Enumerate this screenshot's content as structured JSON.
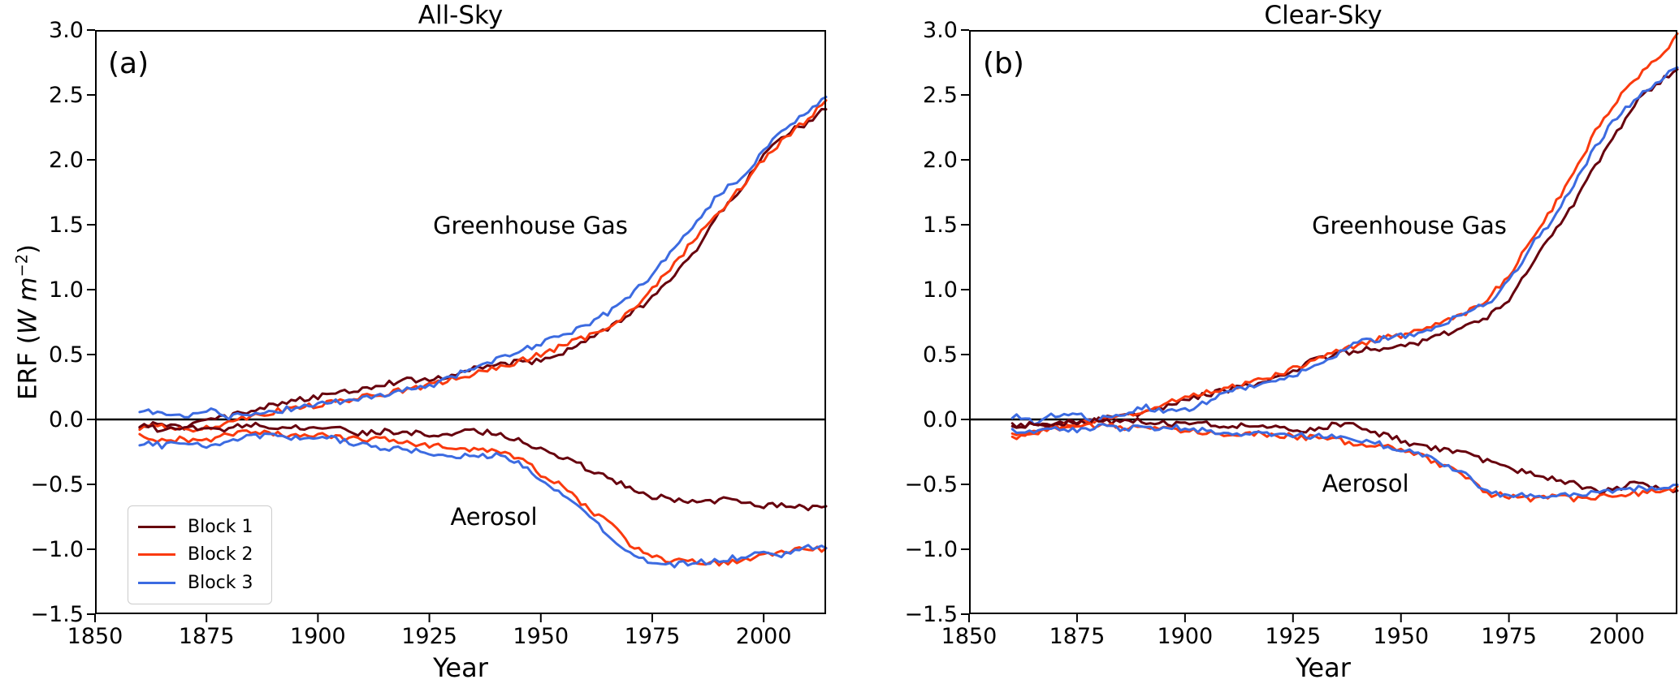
{
  "figure": {
    "ylabel": {
      "prefix": "ERF (",
      "math": "W m",
      "sup": "−2",
      "suffix": ")"
    },
    "panels": [
      {
        "label": "(a)",
        "title": "All-Sky",
        "xlabel": "Year",
        "annotations": {
          "ghg": "Greenhouse Gas",
          "aerosol": "Aerosol"
        }
      },
      {
        "label": "(b)",
        "title": "Clear-Sky",
        "xlabel": "Year",
        "annotations": {
          "ghg": "Greenhouse Gas",
          "aerosol": "Aerosol"
        }
      }
    ],
    "legend": {
      "items": [
        {
          "label": "Block 1",
          "color": "#67000d"
        },
        {
          "label": "Block 2",
          "color": "#fa3a0e"
        },
        {
          "label": "Block 3",
          "color": "#3c6be1"
        }
      ]
    }
  },
  "chart_data": [
    {
      "type": "line",
      "title": "All-Sky",
      "xlabel": "Year",
      "ylabel": "ERF (W m^-2)",
      "xlim": [
        1850,
        2014
      ],
      "ylim": [
        -1.5,
        3.0
      ],
      "grid": false,
      "legend_position": "lower left",
      "x_ticks": [
        1850,
        1875,
        1900,
        1925,
        1950,
        1975,
        2000
      ],
      "x_tick_labels": [
        "1850",
        "1875",
        "1900",
        "1925",
        "1950",
        "1975",
        "2000"
      ],
      "y_ticks": [
        -1.5,
        -1.0,
        -0.5,
        0.0,
        0.5,
        1.0,
        1.5,
        2.0,
        2.5,
        3.0
      ],
      "y_tick_labels": [
        "−1.5",
        "−1.0",
        "−0.5",
        "0.0",
        "0.5",
        "1.0",
        "1.5",
        "2.0",
        "2.5",
        "3.0"
      ],
      "zero_line": true,
      "annotations": [
        "Greenhouse Gas",
        "Aerosol"
      ],
      "x": [
        1860,
        1865,
        1870,
        1875,
        1880,
        1885,
        1890,
        1895,
        1900,
        1905,
        1910,
        1915,
        1920,
        1925,
        1930,
        1935,
        1940,
        1945,
        1950,
        1955,
        1960,
        1965,
        1970,
        1975,
        1980,
        1985,
        1990,
        1995,
        2000,
        2005,
        2010,
        2014
      ],
      "series": [
        {
          "name": "Block 1 Greenhouse Gas",
          "color": "#67000d",
          "values": [
            -0.05,
            -0.03,
            -0.06,
            -0.01,
            0.02,
            0.07,
            0.12,
            0.15,
            0.17,
            0.21,
            0.24,
            0.28,
            0.3,
            0.31,
            0.34,
            0.39,
            0.42,
            0.44,
            0.45,
            0.52,
            0.6,
            0.7,
            0.81,
            0.93,
            1.12,
            1.32,
            1.58,
            1.79,
            2.03,
            2.2,
            2.29,
            2.4
          ]
        },
        {
          "name": "Block 2 Greenhouse Gas",
          "color": "#fa3a0e",
          "values": [
            -0.07,
            -0.05,
            -0.09,
            -0.06,
            -0.02,
            0.03,
            0.06,
            0.09,
            0.11,
            0.14,
            0.17,
            0.2,
            0.23,
            0.26,
            0.31,
            0.35,
            0.39,
            0.45,
            0.5,
            0.57,
            0.63,
            0.72,
            0.83,
            1.0,
            1.2,
            1.41,
            1.6,
            1.79,
            2.01,
            2.17,
            2.32,
            2.46
          ]
        },
        {
          "name": "Block 3 Greenhouse Gas",
          "color": "#3c6be1",
          "values": [
            0.07,
            0.05,
            0.02,
            0.08,
            0.02,
            0.05,
            0.06,
            0.09,
            0.12,
            0.14,
            0.16,
            0.19,
            0.23,
            0.26,
            0.33,
            0.4,
            0.46,
            0.53,
            0.58,
            0.65,
            0.73,
            0.82,
            0.95,
            1.12,
            1.32,
            1.52,
            1.74,
            1.86,
            2.07,
            2.26,
            2.37,
            2.48
          ]
        },
        {
          "name": "Block 1 Aerosol",
          "color": "#67000d",
          "values": [
            -0.05,
            -0.08,
            -0.06,
            -0.08,
            -0.07,
            -0.04,
            -0.05,
            -0.06,
            -0.06,
            -0.08,
            -0.11,
            -0.09,
            -0.1,
            -0.12,
            -0.1,
            -0.09,
            -0.11,
            -0.15,
            -0.23,
            -0.29,
            -0.37,
            -0.45,
            -0.52,
            -0.59,
            -0.62,
            -0.64,
            -0.62,
            -0.62,
            -0.66,
            -0.66,
            -0.69,
            -0.65
          ]
        },
        {
          "name": "Block 2 Aerosol",
          "color": "#fa3a0e",
          "values": [
            -0.13,
            -0.16,
            -0.15,
            -0.17,
            -0.12,
            -0.1,
            -0.11,
            -0.13,
            -0.12,
            -0.14,
            -0.16,
            -0.15,
            -0.18,
            -0.2,
            -0.22,
            -0.24,
            -0.25,
            -0.29,
            -0.42,
            -0.52,
            -0.67,
            -0.79,
            -0.96,
            -1.06,
            -1.09,
            -1.1,
            -1.11,
            -1.08,
            -1.04,
            -1.02,
            -0.99,
            -1.0
          ]
        },
        {
          "name": "Block 3 Aerosol",
          "color": "#3c6be1",
          "values": [
            -0.18,
            -0.2,
            -0.17,
            -0.2,
            -0.16,
            -0.13,
            -0.12,
            -0.14,
            -0.13,
            -0.16,
            -0.2,
            -0.22,
            -0.24,
            -0.26,
            -0.29,
            -0.27,
            -0.28,
            -0.33,
            -0.45,
            -0.57,
            -0.73,
            -0.88,
            -1.04,
            -1.1,
            -1.12,
            -1.1,
            -1.08,
            -1.06,
            -1.03,
            -1.04,
            -0.98,
            -0.97
          ]
        }
      ]
    },
    {
      "type": "line",
      "title": "Clear-Sky",
      "xlabel": "Year",
      "ylabel": "ERF (W m^-2)",
      "xlim": [
        1850,
        2014
      ],
      "ylim": [
        -1.5,
        3.0
      ],
      "grid": false,
      "legend_position": "none",
      "x_ticks": [
        1850,
        1875,
        1900,
        1925,
        1950,
        1975,
        2000
      ],
      "x_tick_labels": [
        "1850",
        "1875",
        "1900",
        "1925",
        "1950",
        "1975",
        "2000"
      ],
      "y_ticks": [
        -1.5,
        -1.0,
        -0.5,
        0.0,
        0.5,
        1.0,
        1.5,
        2.0,
        2.5,
        3.0
      ],
      "y_tick_labels": [
        "−1.5",
        "−1.0",
        "−0.5",
        "0.0",
        "0.5",
        "1.0",
        "1.5",
        "2.0",
        "2.5",
        "3.0"
      ],
      "zero_line": true,
      "annotations": [
        "Greenhouse Gas",
        "Aerosol"
      ],
      "x": [
        1860,
        1865,
        1870,
        1875,
        1880,
        1885,
        1890,
        1895,
        1900,
        1905,
        1910,
        1915,
        1920,
        1925,
        1930,
        1935,
        1940,
        1945,
        1950,
        1955,
        1960,
        1965,
        1970,
        1975,
        1980,
        1985,
        1990,
        1995,
        2000,
        2005,
        2010,
        2014
      ],
      "series": [
        {
          "name": "Block 1 Greenhouse Gas",
          "color": "#67000d",
          "values": [
            -0.04,
            -0.05,
            -0.03,
            -0.02,
            0.0,
            0.04,
            0.05,
            0.1,
            0.15,
            0.19,
            0.23,
            0.26,
            0.31,
            0.36,
            0.46,
            0.5,
            0.53,
            0.55,
            0.57,
            0.6,
            0.66,
            0.72,
            0.79,
            0.93,
            1.19,
            1.42,
            1.65,
            1.95,
            2.22,
            2.46,
            2.6,
            2.7
          ]
        },
        {
          "name": "Block 2 Greenhouse Gas",
          "color": "#fa3a0e",
          "values": [
            -0.15,
            -0.1,
            -0.06,
            -0.04,
            0.0,
            0.03,
            0.05,
            0.11,
            0.17,
            0.21,
            0.24,
            0.28,
            0.33,
            0.39,
            0.45,
            0.52,
            0.58,
            0.62,
            0.65,
            0.7,
            0.76,
            0.81,
            0.93,
            1.1,
            1.38,
            1.62,
            1.89,
            2.22,
            2.46,
            2.64,
            2.81,
            2.95
          ]
        },
        {
          "name": "Block 3 Greenhouse Gas",
          "color": "#3c6be1",
          "values": [
            0.03,
            -0.02,
            0.04,
            0.03,
            0.0,
            0.03,
            0.1,
            0.06,
            0.07,
            0.13,
            0.22,
            0.26,
            0.29,
            0.33,
            0.42,
            0.5,
            0.6,
            0.62,
            0.64,
            0.67,
            0.73,
            0.83,
            0.89,
            1.06,
            1.33,
            1.53,
            1.8,
            2.1,
            2.33,
            2.48,
            2.62,
            2.72
          ]
        },
        {
          "name": "Block 1 Aerosol",
          "color": "#67000d",
          "values": [
            -0.05,
            -0.04,
            -0.03,
            -0.02,
            -0.01,
            -0.02,
            -0.01,
            -0.03,
            -0.04,
            -0.03,
            -0.05,
            -0.04,
            -0.06,
            -0.08,
            -0.09,
            -0.03,
            -0.05,
            -0.11,
            -0.16,
            -0.21,
            -0.24,
            -0.27,
            -0.32,
            -0.37,
            -0.42,
            -0.46,
            -0.49,
            -0.55,
            -0.53,
            -0.49,
            -0.53,
            -0.56
          ]
        },
        {
          "name": "Block 2 Aerosol",
          "color": "#fa3a0e",
          "values": [
            -0.12,
            -0.1,
            -0.08,
            -0.06,
            -0.04,
            -0.06,
            -0.05,
            -0.08,
            -0.09,
            -0.1,
            -0.11,
            -0.1,
            -0.12,
            -0.13,
            -0.14,
            -0.15,
            -0.2,
            -0.21,
            -0.23,
            -0.28,
            -0.36,
            -0.44,
            -0.57,
            -0.59,
            -0.61,
            -0.59,
            -0.61,
            -0.6,
            -0.58,
            -0.57,
            -0.55,
            -0.53
          ]
        },
        {
          "name": "Block 3 Aerosol",
          "color": "#3c6be1",
          "values": [
            -0.08,
            -0.09,
            -0.07,
            -0.08,
            -0.05,
            -0.07,
            -0.06,
            -0.07,
            -0.06,
            -0.09,
            -0.1,
            -0.11,
            -0.11,
            -0.12,
            -0.13,
            -0.14,
            -0.17,
            -0.19,
            -0.23,
            -0.27,
            -0.34,
            -0.43,
            -0.56,
            -0.58,
            -0.59,
            -0.58,
            -0.59,
            -0.56,
            -0.54,
            -0.53,
            -0.54,
            -0.52
          ]
        }
      ]
    }
  ]
}
